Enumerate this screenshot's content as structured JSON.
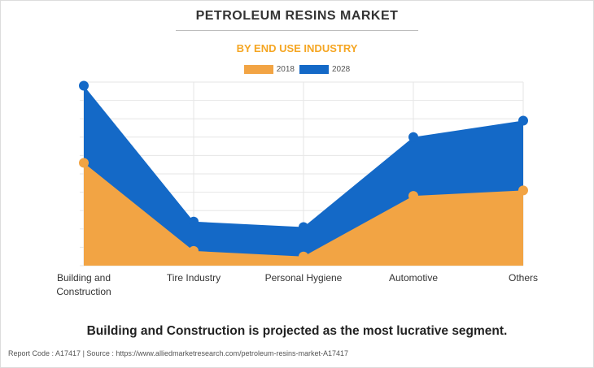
{
  "title": "PETROLEUM RESINS MARKET",
  "subtitle": "BY END USE INDUSTRY",
  "caption": "Building and Construction is projected as the most lucrative segment.",
  "footer": "Report Code : A17417  |  Source : https://www.alliedmarketresearch.com/petroleum-resins-market-A17417",
  "colors": {
    "subtitle": "#f5a623",
    "series_2018": "#f2a444",
    "series_2028": "#1469c7",
    "grid": "#e6e6e6"
  },
  "chart_data": {
    "type": "area",
    "categories": [
      [
        "Building and",
        "Construction"
      ],
      [
        "Tire Industry"
      ],
      [
        "Personal Hygiene"
      ],
      [
        "Automotive"
      ],
      [
        "Others"
      ]
    ],
    "ylim": [
      0,
      100
    ],
    "grid": true,
    "legend_position": "top-center",
    "series": [
      {
        "name": "2018",
        "values": [
          56,
          8,
          5,
          38,
          41
        ]
      },
      {
        "name": "2028",
        "values": [
          98,
          24,
          21,
          70,
          79
        ]
      }
    ]
  }
}
